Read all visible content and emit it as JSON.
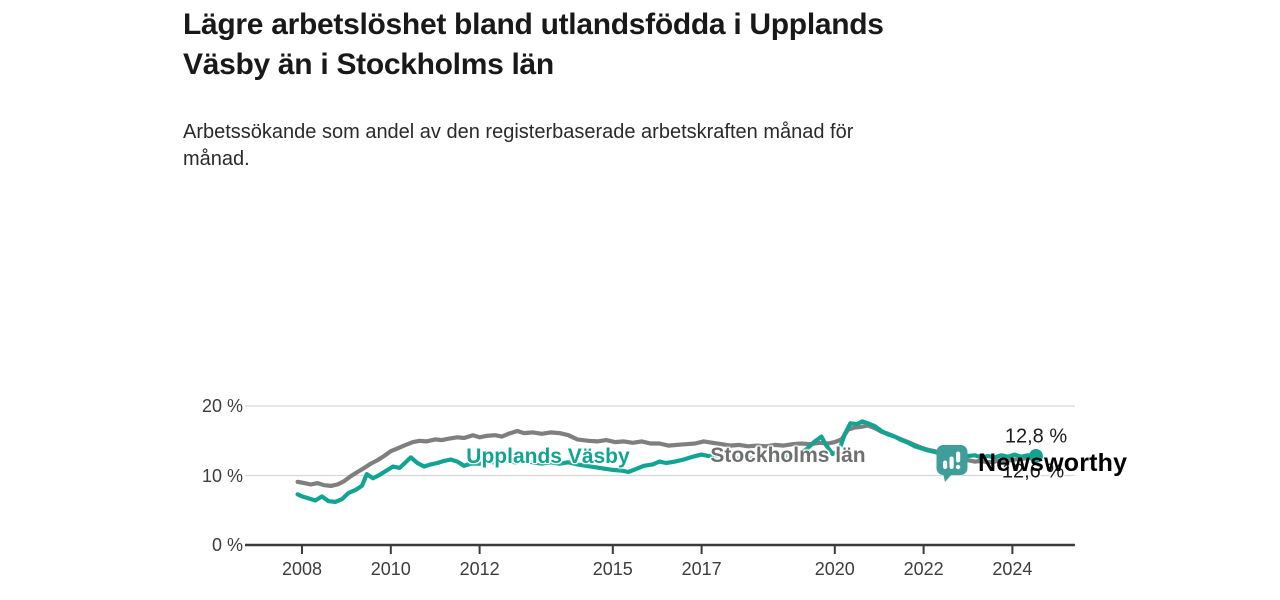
{
  "header": {
    "title_line1": "Lägre arbetslöshet bland utlandsfödda i Upplands",
    "title_line2": "Väsby än i Stockholms län",
    "subtitle_line1": "Arbetssökande som andel av den registerbaserade arbetskraften månad för",
    "subtitle_line2": "månad."
  },
  "colors": {
    "title_text": "#191919",
    "subtitle_text": "#2a2a2a",
    "axis_text": "#3d3d3d",
    "axis_line": "#3c3c3c",
    "gridline": "#d8d8d8",
    "upplands_vasby": "#12a492",
    "stockholms_lan": "#7f7f7f",
    "stockholms_label": "#6f6f6f",
    "logo_teal": "#3f9d9a"
  },
  "chart_data": {
    "type": "line",
    "unit": "%",
    "grid": "horizontal",
    "xlim": [
      2007.6,
      2025.0
    ],
    "ylim": [
      0,
      21.5
    ],
    "x_ticks": [
      2008,
      2010,
      2012,
      2015,
      2017,
      2020,
      2022,
      2024
    ],
    "y_ticks": [
      {
        "value": 20,
        "label": "20 %"
      },
      {
        "value": 10,
        "label": "10 %"
      },
      {
        "value": 0,
        "label": "0 %"
      }
    ],
    "series": [
      {
        "name": "Upplands Väsby",
        "color": "#12a492",
        "end_label": "12,8 %",
        "end_value": 12.8,
        "points": [
          [
            2007.9,
            7.3
          ],
          [
            2008.0,
            7.0
          ],
          [
            2008.15,
            6.7
          ],
          [
            2008.3,
            6.4
          ],
          [
            2008.45,
            7.0
          ],
          [
            2008.6,
            6.3
          ],
          [
            2008.75,
            6.2
          ],
          [
            2008.9,
            6.6
          ],
          [
            2009.05,
            7.5
          ],
          [
            2009.2,
            7.9
          ],
          [
            2009.35,
            8.5
          ],
          [
            2009.46,
            10.2
          ],
          [
            2009.6,
            9.6
          ],
          [
            2009.75,
            10.1
          ],
          [
            2009.9,
            10.7
          ],
          [
            2010.05,
            11.3
          ],
          [
            2010.2,
            11.1
          ],
          [
            2010.45,
            12.6
          ],
          [
            2010.6,
            11.8
          ],
          [
            2010.75,
            11.3
          ],
          [
            2010.9,
            11.6
          ],
          [
            2011.05,
            11.8
          ],
          [
            2011.2,
            12.1
          ],
          [
            2011.35,
            12.3
          ],
          [
            2011.5,
            12.0
          ],
          [
            2011.65,
            11.4
          ],
          [
            2011.8,
            11.7
          ],
          [
            2012.0,
            11.7
          ],
          [
            2012.2,
            12.0
          ],
          [
            2012.4,
            11.8
          ],
          [
            2012.6,
            12.1
          ],
          [
            2012.8,
            11.9
          ],
          [
            2013.0,
            12.1
          ],
          [
            2013.2,
            11.9
          ],
          [
            2013.4,
            11.7
          ],
          [
            2013.6,
            11.9
          ],
          [
            2013.8,
            11.7
          ],
          [
            2014.0,
            11.9
          ],
          [
            2014.2,
            11.6
          ],
          [
            2014.4,
            11.4
          ],
          [
            2014.6,
            11.2
          ],
          [
            2014.8,
            11.0
          ],
          [
            2015.0,
            10.8
          ],
          [
            2015.2,
            10.7
          ],
          [
            2015.35,
            10.5
          ],
          [
            2015.55,
            11.0
          ],
          [
            2015.7,
            11.4
          ],
          [
            2015.9,
            11.6
          ],
          [
            2016.05,
            12.0
          ],
          [
            2016.2,
            11.8
          ],
          [
            2016.4,
            12.0
          ],
          [
            2016.6,
            12.3
          ],
          [
            2016.8,
            12.7
          ],
          [
            2017.0,
            13.0
          ],
          [
            2017.15,
            12.8
          ],
          [
            2017.35,
            12.9
          ],
          [
            2017.55,
            12.6
          ],
          [
            2017.75,
            12.4
          ],
          [
            2017.95,
            12.6
          ],
          [
            2018.15,
            12.4
          ],
          [
            2018.35,
            12.2
          ],
          [
            2018.55,
            12.4
          ],
          [
            2018.75,
            12.6
          ],
          [
            2018.95,
            12.8
          ],
          [
            2019.15,
            13.1
          ],
          [
            2019.35,
            13.7
          ],
          [
            2019.55,
            14.9
          ],
          [
            2019.7,
            15.6
          ],
          [
            2019.8,
            14.4
          ],
          [
            2019.95,
            13.1
          ],
          [
            2020.1,
            13.6
          ],
          [
            2020.22,
            15.9
          ],
          [
            2020.35,
            17.5
          ],
          [
            2020.5,
            17.4
          ],
          [
            2020.62,
            17.8
          ],
          [
            2020.75,
            17.5
          ],
          [
            2020.9,
            17.1
          ],
          [
            2021.05,
            16.4
          ],
          [
            2021.2,
            15.9
          ],
          [
            2021.35,
            15.6
          ],
          [
            2021.5,
            15.1
          ],
          [
            2021.65,
            14.7
          ],
          [
            2021.8,
            14.2
          ],
          [
            2021.95,
            13.9
          ],
          [
            2022.1,
            13.6
          ],
          [
            2022.25,
            13.4
          ],
          [
            2022.4,
            13.1
          ],
          [
            2022.55,
            12.9
          ],
          [
            2022.7,
            12.8
          ],
          [
            2022.85,
            13.0
          ],
          [
            2023.0,
            12.8
          ],
          [
            2023.15,
            12.9
          ],
          [
            2023.3,
            12.6
          ],
          [
            2023.45,
            12.8
          ],
          [
            2023.6,
            12.6
          ],
          [
            2023.75,
            12.9
          ],
          [
            2023.9,
            12.7
          ],
          [
            2024.05,
            13.0
          ],
          [
            2024.2,
            12.7
          ],
          [
            2024.35,
            12.9
          ],
          [
            2024.53,
            12.8
          ]
        ]
      },
      {
        "name": "Stockholms län",
        "color": "#7f7f7f",
        "end_label": "12,6 %",
        "end_value": 12.6,
        "points": [
          [
            2007.9,
            9.1
          ],
          [
            2008.05,
            8.9
          ],
          [
            2008.2,
            8.7
          ],
          [
            2008.35,
            8.9
          ],
          [
            2008.5,
            8.6
          ],
          [
            2008.65,
            8.5
          ],
          [
            2008.8,
            8.7
          ],
          [
            2008.95,
            9.2
          ],
          [
            2009.1,
            9.9
          ],
          [
            2009.25,
            10.5
          ],
          [
            2009.4,
            11.1
          ],
          [
            2009.55,
            11.7
          ],
          [
            2009.7,
            12.2
          ],
          [
            2009.85,
            12.8
          ],
          [
            2010.0,
            13.5
          ],
          [
            2010.15,
            13.9
          ],
          [
            2010.3,
            14.3
          ],
          [
            2010.5,
            14.8
          ],
          [
            2010.65,
            15.0
          ],
          [
            2010.8,
            14.9
          ],
          [
            2011.0,
            15.2
          ],
          [
            2011.15,
            15.1
          ],
          [
            2011.3,
            15.3
          ],
          [
            2011.5,
            15.5
          ],
          [
            2011.65,
            15.4
          ],
          [
            2011.85,
            15.8
          ],
          [
            2012.0,
            15.5
          ],
          [
            2012.15,
            15.7
          ],
          [
            2012.35,
            15.8
          ],
          [
            2012.5,
            15.6
          ],
          [
            2012.65,
            16.0
          ],
          [
            2012.85,
            16.4
          ],
          [
            2013.0,
            16.1
          ],
          [
            2013.2,
            16.2
          ],
          [
            2013.4,
            16.0
          ],
          [
            2013.6,
            16.2
          ],
          [
            2013.8,
            16.1
          ],
          [
            2014.0,
            15.8
          ],
          [
            2014.2,
            15.2
          ],
          [
            2014.45,
            15.0
          ],
          [
            2014.65,
            14.9
          ],
          [
            2014.85,
            15.1
          ],
          [
            2015.05,
            14.8
          ],
          [
            2015.25,
            14.9
          ],
          [
            2015.45,
            14.7
          ],
          [
            2015.65,
            14.9
          ],
          [
            2015.85,
            14.6
          ],
          [
            2016.05,
            14.6
          ],
          [
            2016.25,
            14.3
          ],
          [
            2016.45,
            14.4
          ],
          [
            2016.65,
            14.5
          ],
          [
            2016.85,
            14.6
          ],
          [
            2017.05,
            14.9
          ],
          [
            2017.25,
            14.7
          ],
          [
            2017.45,
            14.5
          ],
          [
            2017.65,
            14.3
          ],
          [
            2017.85,
            14.4
          ],
          [
            2018.05,
            14.2
          ],
          [
            2018.25,
            14.3
          ],
          [
            2018.45,
            14.2
          ],
          [
            2018.65,
            14.4
          ],
          [
            2018.85,
            14.3
          ],
          [
            2019.05,
            14.5
          ],
          [
            2019.25,
            14.6
          ],
          [
            2019.45,
            14.5
          ],
          [
            2019.65,
            14.7
          ],
          [
            2019.85,
            14.6
          ],
          [
            2020.0,
            14.8
          ],
          [
            2020.15,
            15.2
          ],
          [
            2020.3,
            16.6
          ],
          [
            2020.45,
            16.9
          ],
          [
            2020.6,
            17.0
          ],
          [
            2020.75,
            17.2
          ],
          [
            2020.9,
            16.8
          ],
          [
            2021.05,
            16.3
          ],
          [
            2021.2,
            16.0
          ],
          [
            2021.35,
            15.6
          ],
          [
            2021.5,
            15.2
          ],
          [
            2021.65,
            14.8
          ],
          [
            2021.8,
            14.4
          ],
          [
            2021.95,
            14.0
          ],
          [
            2022.1,
            13.7
          ],
          [
            2022.25,
            13.5
          ],
          [
            2022.4,
            13.2
          ],
          [
            2022.55,
            12.9
          ],
          [
            2022.7,
            12.6
          ],
          [
            2022.85,
            12.4
          ],
          [
            2023.0,
            12.2
          ],
          [
            2023.15,
            12.0
          ],
          [
            2023.3,
            12.1
          ],
          [
            2023.45,
            11.9
          ],
          [
            2023.6,
            12.0
          ],
          [
            2023.75,
            12.2
          ],
          [
            2023.9,
            12.1
          ],
          [
            2024.05,
            12.3
          ],
          [
            2024.2,
            12.4
          ],
          [
            2024.35,
            12.5
          ],
          [
            2024.53,
            12.6
          ]
        ]
      }
    ]
  },
  "branding": {
    "logo_text": "Newsworthy",
    "logo_icon": "bar-chart-speech-bubble-icon"
  }
}
